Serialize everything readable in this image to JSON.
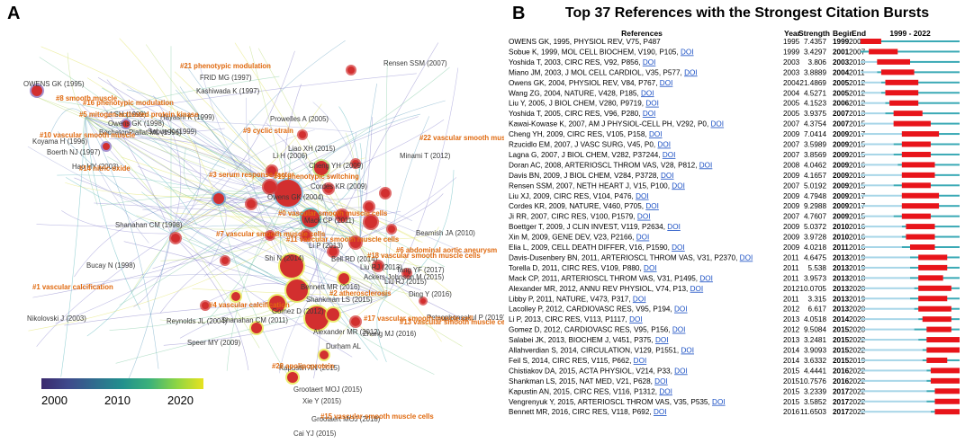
{
  "panel_a": {
    "letter": "A",
    "colorbar": {
      "ticks": [
        "2000",
        "2010",
        "2020"
      ]
    },
    "clusters": [
      "#21 phenotypic modulation",
      "#8 smooth muscle",
      "#16 phenotypic modulation",
      "#5 mitogen-activated protein kinase",
      "#10 vascular smooth muscle",
      "#14 nitric oxide",
      "#9 cyclic strain",
      "#19 phenotypic switching",
      "#3 serum response factor",
      "#22 vascular smooth muscle cells",
      "#0 vascular smooth muscle cells",
      "#7 vascular smooth muscle cells",
      "#11 vascular smooth muscle cells",
      "#18 vascular smooth muscle cells",
      "#6 abdominal aortic aneurysm",
      "#1 vascular calcification",
      "#2 atherosclerosis",
      "#4 vascular calcification",
      "#17 vascular smooth muscle cell",
      "#13 vascular smooth muscle cells",
      "#28 apolipoprotein",
      "#15 vascular smooth muscle cells"
    ],
    "authors": [
      "OWENS GK (1995)",
      "FRID MG (1997)",
      "Kashiwada K (1997)",
      "Rensen SSM (2007)",
      "LI SH (1999)",
      "Hayashi K (1999)",
      "Owens GK (1998)",
      "BochatonPiallat ML (1996)",
      "Sobue K (1999)",
      "Koyama H (1996)",
      "Boerth NJ (1997)",
      "Hao HY (2003)",
      "Prowelles A (2005)",
      "Liao XH (2015)",
      "Li H (2006)",
      "Minami T (2012)",
      "Cheng YH (2009)",
      "Owens GK (2004)",
      "Cordes KR (2009)",
      "Mack CP (2011)",
      "Shanahan CM (1998)",
      "Beamish JA (2010)",
      "Li P (2013)",
      "Bell RD (2014)",
      "Shi N (2014)",
      "Tang YF (2017)",
      "Bucay N (1998)",
      "Bennett MR (2016)",
      "Ackers-Johnson M (2015)",
      "Liu RJ (2013)",
      "Liu RJ (2015)",
      "Shankman LS (2015)",
      "Ding Y (2016)",
      "Gomez D (2012)",
      "Nikolovski J (2003)",
      "Reynolds JL (2004)",
      "Shanahan CM (2011)",
      "Alexander MR (2012)",
      "Zhang MJ (2016)",
      "Petsophonsakul P (2019)",
      "Speer MY (2009)",
      "Durham AL",
      "Kapustin AN (2015)",
      "Grootaert MOJ (2015)",
      "Xie Y (2015)",
      "Grootaert MOJ (2018)",
      "Cai YJ (2015)"
    ]
  },
  "panel_b": {
    "letter": "B",
    "title": "Top 37 References with the Strongest Citation Bursts",
    "headers": {
      "references": "References",
      "year": "Year",
      "strength": "Strength",
      "begin": "Begin",
      "end": "End",
      "range": "1999 - 2022"
    },
    "doi_label": "DOI"
  },
  "chart_data": {
    "type": "table",
    "title": "Top 37 References with the Strongest Citation Bursts",
    "range": [
      1999,
      2022
    ],
    "rows": [
      {
        "ref": "OWENS GK, 1995, PHYSIOL REV, V75, P487",
        "doi": false,
        "year": 1995,
        "strength": "7.4357",
        "begin": 1999,
        "end": 2003
      },
      {
        "ref": "Sobue K, 1999, MOL CELL BIOCHEM, V190, P105,",
        "doi": true,
        "year": 1999,
        "strength": "3.4297",
        "begin": 2001,
        "end": 2007
      },
      {
        "ref": "Yoshida T, 2003, CIRC RES, V92, P856,",
        "doi": true,
        "year": 2003,
        "strength": "3.806",
        "begin": 2003,
        "end": 2010
      },
      {
        "ref": "Miano JM, 2003, J MOL CELL CARDIOL, V35, P577,",
        "doi": true,
        "year": 2003,
        "strength": "3.8889",
        "begin": 2004,
        "end": 2011
      },
      {
        "ref": "Owens GK, 2004, PHYSIOL REV, V84, P767,",
        "doi": true,
        "year": 2004,
        "strength": "21.4869",
        "begin": 2005,
        "end": 2012
      },
      {
        "ref": "Wang ZG, 2004, NATURE, V428, P185,",
        "doi": true,
        "year": 2004,
        "strength": "4.5271",
        "begin": 2005,
        "end": 2012
      },
      {
        "ref": "Liu Y, 2005, J BIOL CHEM, V280, P9719,",
        "doi": true,
        "year": 2005,
        "strength": "4.1523",
        "begin": 2006,
        "end": 2012
      },
      {
        "ref": "Yoshida T, 2005, CIRC RES, V96, P280,",
        "doi": true,
        "year": 2005,
        "strength": "3.9375",
        "begin": 2007,
        "end": 2013
      },
      {
        "ref": "Kawai-Kowase K, 2007, AM J PHYSIOL-CELL PH, V292, P0,",
        "doi": true,
        "year": 2007,
        "strength": "4.3754",
        "begin": 2007,
        "end": 2015
      },
      {
        "ref": "Cheng YH, 2009, CIRC RES, V105, P158,",
        "doi": true,
        "year": 2009,
        "strength": "7.0414",
        "begin": 2009,
        "end": 2017
      },
      {
        "ref": "Rzucidlo EM, 2007, J VASC SURG, V45, P0,",
        "doi": true,
        "year": 2007,
        "strength": "3.5989",
        "begin": 2009,
        "end": 2015
      },
      {
        "ref": "Lagna G, 2007, J BIOL CHEM, V282, P37244,",
        "doi": true,
        "year": 2007,
        "strength": "3.8569",
        "begin": 2009,
        "end": 2015
      },
      {
        "ref": "Doran AC, 2008, ARTERIOSCL THROM VAS, V28, P812,",
        "doi": true,
        "year": 2008,
        "strength": "4.0462",
        "begin": 2009,
        "end": 2016
      },
      {
        "ref": "Davis BN, 2009, J BIOL CHEM, V284, P3728,",
        "doi": true,
        "year": 2009,
        "strength": "4.1657",
        "begin": 2009,
        "end": 2016
      },
      {
        "ref": "Rensen SSM, 2007, NETH HEART J, V15, P100,",
        "doi": true,
        "year": 2007,
        "strength": "5.0192",
        "begin": 2009,
        "end": 2015
      },
      {
        "ref": "Liu XJ, 2009, CIRC RES, V104, P476,",
        "doi": true,
        "year": 2009,
        "strength": "4.7948",
        "begin": 2009,
        "end": 2017
      },
      {
        "ref": "Cordes KR, 2009, NATURE, V460, P705,",
        "doi": true,
        "year": 2009,
        "strength": "9.2988",
        "begin": 2009,
        "end": 2017
      },
      {
        "ref": "Ji RR, 2007, CIRC RES, V100, P1579,",
        "doi": true,
        "year": 2007,
        "strength": "4.7607",
        "begin": 2009,
        "end": 2015
      },
      {
        "ref": "Boettger T, 2009, J CLIN INVEST, V119, P2634,",
        "doi": true,
        "year": 2009,
        "strength": "5.0372",
        "begin": 2010,
        "end": 2016
      },
      {
        "ref": "Xin M, 2009, GENE DEV, V23, P2166,",
        "doi": true,
        "year": 2009,
        "strength": "3.9728",
        "begin": 2010,
        "end": 2016
      },
      {
        "ref": "Elia L, 2009, CELL DEATH DIFFER, V16, P1590,",
        "doi": true,
        "year": 2009,
        "strength": "4.0218",
        "begin": 2011,
        "end": 2016
      },
      {
        "ref": "Davis-Dusenbery BN, 2011, ARTERIOSCL THROM VAS, V31, P2370,",
        "doi": true,
        "year": 2011,
        "strength": "4.6475",
        "begin": 2013,
        "end": 2019
      },
      {
        "ref": "Torella D, 2011, CIRC RES, V109, P880,",
        "doi": true,
        "year": 2011,
        "strength": "5.538",
        "begin": 2013,
        "end": 2019
      },
      {
        "ref": "Mack CP, 2011, ARTERIOSCL THROM VAS, V31, P1495,",
        "doi": true,
        "year": 2011,
        "strength": "3.9573",
        "begin": 2013,
        "end": 2018
      },
      {
        "ref": "Alexander MR, 2012, ANNU REV PHYSIOL, V74, P13,",
        "doi": true,
        "year": 2012,
        "strength": "10.0705",
        "begin": 2013,
        "end": 2020
      },
      {
        "ref": "Libby P, 2011, NATURE, V473, P317,",
        "doi": true,
        "year": 2011,
        "strength": "3.315",
        "begin": 2013,
        "end": 2019
      },
      {
        "ref": "Lacolley P, 2012, CARDIOVASC RES, V95, P194,",
        "doi": true,
        "year": 2012,
        "strength": "6.617",
        "begin": 2013,
        "end": 2020
      },
      {
        "ref": "Li P, 2013, CIRC RES, V113, P1117,",
        "doi": true,
        "year": 2013,
        "strength": "4.0518",
        "begin": 2014,
        "end": 2020
      },
      {
        "ref": "Gomez D, 2012, CARDIOVASC RES, V95, P156,",
        "doi": true,
        "year": 2012,
        "strength": "9.5084",
        "begin": 2015,
        "end": 2020
      },
      {
        "ref": "Salabei JK, 2013, BIOCHEM J, V451, P375,",
        "doi": true,
        "year": 2013,
        "strength": "3.2481",
        "begin": 2015,
        "end": 2022
      },
      {
        "ref": "Allahverdian S, 2014, CIRCULATION, V129, P1551,",
        "doi": true,
        "year": 2014,
        "strength": "3.9093",
        "begin": 2015,
        "end": 2022
      },
      {
        "ref": "Feil S, 2014, CIRC RES, V115, P662,",
        "doi": true,
        "year": 2014,
        "strength": "3.6332",
        "begin": 2015,
        "end": 2019
      },
      {
        "ref": "Chistiakov DA, 2015, ACTA PHYSIOL, V214, P33,",
        "doi": true,
        "year": 2015,
        "strength": "4.4441",
        "begin": 2016,
        "end": 2022
      },
      {
        "ref": "Shankman LS, 2015, NAT MED, V21, P628,",
        "doi": true,
        "year": 2015,
        "strength": "10.7576",
        "begin": 2016,
        "end": 2022
      },
      {
        "ref": "Kapustin AN, 2015, CIRC RES, V116, P1312,",
        "doi": true,
        "year": 2015,
        "strength": "3.2339",
        "begin": 2017,
        "end": 2022
      },
      {
        "ref": "Vengrenyuk Y, 2015, ARTERIOSCL THROM VAS, V35, P535,",
        "doi": true,
        "year": 2015,
        "strength": "3.5852",
        "begin": 2017,
        "end": 2022
      },
      {
        "ref": "Bennett MR, 2016, CIRC RES, V118, P692,",
        "doi": true,
        "year": 2016,
        "strength": "11.6503",
        "begin": 2017,
        "end": 2022
      }
    ]
  }
}
